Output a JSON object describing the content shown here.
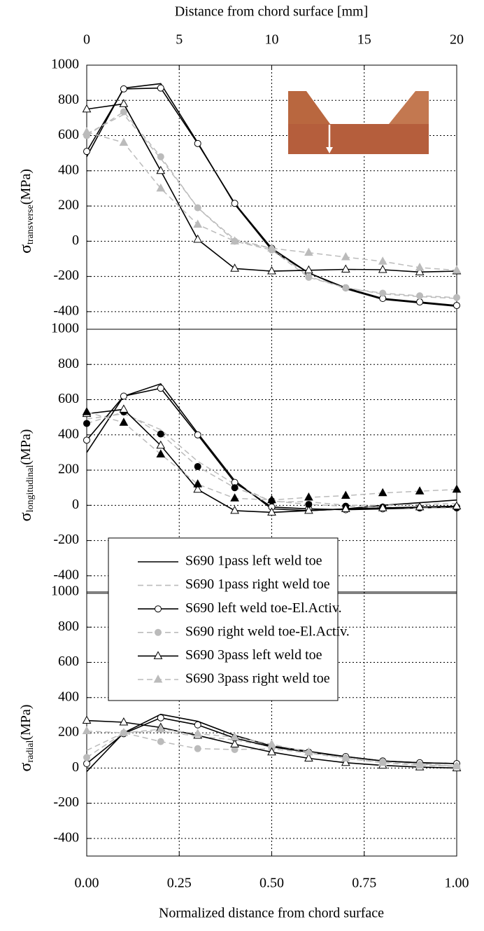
{
  "chart_data": {
    "type": "line",
    "x2label": "Distance from chord surface [mm]",
    "xlabel": "Normalized distance from chord surface",
    "x": [
      0,
      0.1,
      0.2,
      0.3,
      0.4,
      0.5,
      0.6,
      0.7,
      0.8,
      0.9,
      1.0
    ],
    "xlim": [
      0,
      1
    ],
    "xticks": [
      {
        "value": 0,
        "label": "0.00"
      },
      {
        "value": 0.25,
        "label": "0.25"
      },
      {
        "value": 0.5,
        "label": "0.50"
      },
      {
        "value": 0.75,
        "label": "0.75"
      },
      {
        "value": 1,
        "label": "1.00"
      }
    ],
    "x2lim": [
      0,
      20
    ],
    "x2ticks": [
      0,
      5,
      10,
      15,
      20
    ],
    "grid": true,
    "legend": "center",
    "series": [
      {
        "name": "S690 1pass left weld toe",
        "color": "#000000",
        "dash": false,
        "marker": "none",
        "marker_fill": "none"
      },
      {
        "name": "S690 1pass right weld toe",
        "color": "#bbbbbb",
        "dash": true,
        "marker": "none",
        "marker_fill": "none"
      },
      {
        "name": "S690 left weld toe-El.Activ.",
        "color": "#000000",
        "dash": false,
        "marker": "circle",
        "marker_fill": "#ffffff"
      },
      {
        "name": "S690 right weld toe-El.Activ.",
        "color": "#bbbbbb",
        "dash": true,
        "marker": "circle",
        "marker_fill": "#bbbbbb"
      },
      {
        "name": "S690 3pass left weld toe",
        "color": "#000000",
        "dash": false,
        "marker": "triangle",
        "marker_fill": "#ffffff"
      },
      {
        "name": "S690 3pass right weld toe",
        "color": "#bbbbbb",
        "dash": true,
        "marker": "triangle",
        "marker_fill": "#bbbbbb"
      }
    ],
    "panels": [
      {
        "ylabel": {
          "symbol": "σ",
          "subscript": "transverse",
          "unit": "(MPa)"
        },
        "ylim": [
          -500,
          1000
        ],
        "yticks": [
          -400,
          -200,
          0,
          200,
          400,
          600,
          800,
          1000
        ],
        "series": [
          {
            "values": [
              480,
              870,
              895,
              560,
              210,
              -50,
              -180,
              -270,
              -330,
              -350,
              -370
            ]
          },
          {
            "values": [
              610,
              720,
              470,
              190,
              10,
              -40,
              -200,
              -265,
              -300,
              -315,
              -325
            ]
          },
          {
            "values": [
              510,
              865,
              870,
              555,
              215,
              -40,
              -180,
              -265,
              -325,
              -345,
              -365
            ]
          },
          {
            "values": [
              600,
              735,
              480,
              190,
              0,
              -50,
              -205,
              -265,
              -295,
              -310,
              -320
            ]
          },
          {
            "values": [
              750,
              780,
              400,
              10,
              -155,
              -170,
              -165,
              -160,
              -162,
              -175,
              -170
            ]
          },
          {
            "values": [
              620,
              560,
              300,
              95,
              0,
              -40,
              -65,
              -90,
              -115,
              -150,
              -165
            ]
          }
        ]
      },
      {
        "ylabel": {
          "symbol": "σ",
          "subscript": "longitudinal",
          "unit": "(MPa)"
        },
        "ylim": [
          -500,
          1000
        ],
        "yticks": [
          -400,
          -200,
          0,
          200,
          400,
          600,
          800,
          1000
        ],
        "series": [
          {
            "values": [
              300,
              620,
              690,
              410,
              140,
              -20,
              -30,
              -20,
              0,
              15,
              30
            ]
          },
          {
            "values": [
              490,
              520,
              430,
              250,
              120,
              20,
              20,
              0,
              0,
              5,
              10
            ]
          },
          {
            "values": [
              370,
              620,
              665,
              400,
              130,
              -10,
              -20,
              -25,
              -20,
              -15,
              -10
            ]
          },
          {
            "values": [
              465,
              530,
              405,
              220,
              100,
              25,
              5,
              -5,
              -10,
              -15,
              -15
            ],
            "marker_color": "#000000"
          },
          {
            "values": [
              520,
              545,
              340,
              90,
              -30,
              -40,
              -30,
              -20,
              -15,
              -10,
              -5
            ]
          },
          {
            "values": [
              530,
              470,
              290,
              120,
              40,
              30,
              45,
              55,
              70,
              80,
              90
            ],
            "marker_color": "#000000"
          }
        ]
      },
      {
        "ylabel": {
          "symbol": "σ",
          "subscript": "radial",
          "unit": "(MPa)"
        },
        "ylim": [
          -500,
          1000
        ],
        "yticks": [
          -400,
          -200,
          0,
          200,
          400,
          600,
          800,
          1000
        ],
        "series": [
          {
            "values": [
              -20,
              200,
              305,
              265,
              185,
              125,
              95,
              65,
              40,
              30,
              25
            ]
          },
          {
            "values": [
              100,
              200,
              210,
              180,
              160,
              120,
              90,
              60,
              40,
              25,
              10
            ]
          },
          {
            "values": [
              25,
              195,
              285,
              245,
              170,
              120,
              90,
              65,
              40,
              30,
              25
            ]
          },
          {
            "values": [
              60,
              200,
              150,
              110,
              105,
              110,
              85,
              55,
              35,
              20,
              10
            ]
          },
          {
            "values": [
              270,
              260,
              230,
              185,
              135,
              90,
              55,
              30,
              15,
              5,
              0
            ]
          },
          {
            "values": [
              210,
              200,
              220,
              195,
              175,
              135,
              90,
              55,
              30,
              15,
              10
            ]
          }
        ]
      }
    ]
  }
}
